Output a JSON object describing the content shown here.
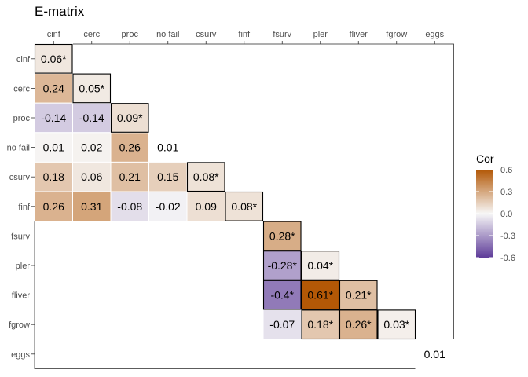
{
  "chart_data": {
    "type": "heatmap",
    "title": "E-matrix",
    "x_labels": [
      "cinf",
      "cerc",
      "proc",
      "no fail",
      "csurv",
      "finf",
      "fsurv",
      "pler",
      "fliver",
      "fgrow",
      "eggs"
    ],
    "y_labels": [
      "cinf",
      "cerc",
      "proc",
      "no fail",
      "csurv",
      "finf",
      "fsurv",
      "pler",
      "fliver",
      "fgrow",
      "eggs"
    ],
    "cells": [
      {
        "row": "cinf",
        "col": "cinf",
        "value": 0.06,
        "label": "0.06*",
        "highlight": true
      },
      {
        "row": "cerc",
        "col": "cinf",
        "value": 0.24,
        "label": "0.24",
        "highlight": false
      },
      {
        "row": "cerc",
        "col": "cerc",
        "value": 0.05,
        "label": "0.05*",
        "highlight": true
      },
      {
        "row": "proc",
        "col": "cinf",
        "value": -0.14,
        "label": "-0.14",
        "highlight": false
      },
      {
        "row": "proc",
        "col": "cerc",
        "value": -0.14,
        "label": "-0.14",
        "highlight": false
      },
      {
        "row": "proc",
        "col": "proc",
        "value": 0.09,
        "label": "0.09*",
        "highlight": true
      },
      {
        "row": "no fail",
        "col": "cinf",
        "value": 0.01,
        "label": "0.01",
        "highlight": false
      },
      {
        "row": "no fail",
        "col": "cerc",
        "value": 0.02,
        "label": "0.02",
        "highlight": false
      },
      {
        "row": "no fail",
        "col": "proc",
        "value": 0.26,
        "label": "0.26",
        "highlight": false
      },
      {
        "row": "no fail",
        "col": "no fail",
        "value": 0.01,
        "label": "0.01",
        "highlight": false,
        "blank": true
      },
      {
        "row": "csurv",
        "col": "cinf",
        "value": 0.18,
        "label": "0.18",
        "highlight": false
      },
      {
        "row": "csurv",
        "col": "cerc",
        "value": 0.06,
        "label": "0.06",
        "highlight": false
      },
      {
        "row": "csurv",
        "col": "proc",
        "value": 0.21,
        "label": "0.21",
        "highlight": false
      },
      {
        "row": "csurv",
        "col": "no fail",
        "value": 0.15,
        "label": "0.15",
        "highlight": false
      },
      {
        "row": "csurv",
        "col": "csurv",
        "value": 0.08,
        "label": "0.08*",
        "highlight": true
      },
      {
        "row": "finf",
        "col": "cinf",
        "value": 0.26,
        "label": "0.26",
        "highlight": false
      },
      {
        "row": "finf",
        "col": "cerc",
        "value": 0.31,
        "label": "0.31",
        "highlight": false
      },
      {
        "row": "finf",
        "col": "proc",
        "value": -0.08,
        "label": "-0.08",
        "highlight": false
      },
      {
        "row": "finf",
        "col": "no fail",
        "value": -0.02,
        "label": "-0.02",
        "highlight": false
      },
      {
        "row": "finf",
        "col": "csurv",
        "value": 0.09,
        "label": "0.09",
        "highlight": false
      },
      {
        "row": "finf",
        "col": "finf",
        "value": 0.08,
        "label": "0.08*",
        "highlight": true
      },
      {
        "row": "fsurv",
        "col": "fsurv",
        "value": 0.28,
        "label": "0.28*",
        "highlight": true
      },
      {
        "row": "pler",
        "col": "fsurv",
        "value": -0.28,
        "label": "-0.28*",
        "highlight": true
      },
      {
        "row": "pler",
        "col": "pler",
        "value": 0.04,
        "label": "0.04*",
        "highlight": true
      },
      {
        "row": "fliver",
        "col": "fsurv",
        "value": -0.4,
        "label": "-0.4*",
        "highlight": true
      },
      {
        "row": "fliver",
        "col": "pler",
        "value": 0.61,
        "label": "0.61*",
        "highlight": true
      },
      {
        "row": "fliver",
        "col": "fliver",
        "value": 0.21,
        "label": "0.21*",
        "highlight": true
      },
      {
        "row": "fgrow",
        "col": "fsurv",
        "value": -0.07,
        "label": "-0.07",
        "highlight": false
      },
      {
        "row": "fgrow",
        "col": "pler",
        "value": 0.18,
        "label": "0.18*",
        "highlight": true
      },
      {
        "row": "fgrow",
        "col": "fliver",
        "value": 0.26,
        "label": "0.26*",
        "highlight": true
      },
      {
        "row": "fgrow",
        "col": "fgrow",
        "value": 0.03,
        "label": "0.03*",
        "highlight": true
      },
      {
        "row": "eggs",
        "col": "eggs",
        "value": 0.01,
        "label": "0.01",
        "highlight": false,
        "blank": true
      }
    ],
    "legend": {
      "title": "Cor",
      "min": -0.6,
      "max": 0.6,
      "ticks": [
        0.6,
        0.3,
        0.0,
        -0.3,
        -0.6
      ],
      "tick_labels": [
        "0.6",
        "0.3",
        "0.0",
        "-0.3",
        "-0.6"
      ],
      "placement": "right"
    },
    "colors": {
      "low": "#5e3c99",
      "mid": "#f7f7f7",
      "high": "#b35806",
      "highlight_border": "#000000",
      "panel_border": "#333333"
    },
    "x_axis_position": "top",
    "grid": false
  }
}
